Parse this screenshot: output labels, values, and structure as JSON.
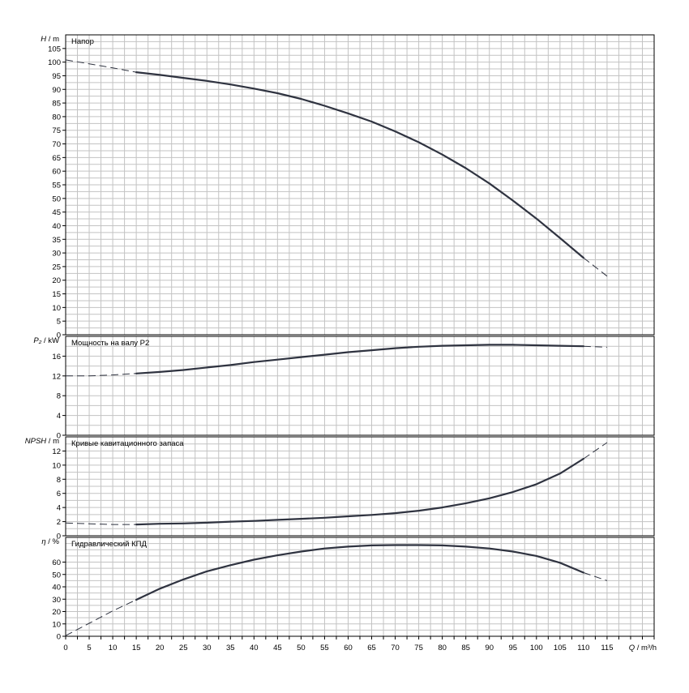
{
  "chart_data": {
    "type": "line",
    "x": {
      "label_symbol": "Q",
      "label_unit": "m³/h",
      "range": [
        0,
        125
      ],
      "ticks": [
        0,
        5,
        10,
        15,
        20,
        25,
        30,
        35,
        40,
        45,
        50,
        55,
        60,
        65,
        70,
        75,
        80,
        85,
        90,
        95,
        100,
        105,
        110,
        115
      ],
      "tick_labels": [
        "0",
        "5",
        "10",
        "15",
        "20",
        "25",
        "30",
        "35",
        "40",
        "45",
        "50",
        "55",
        "60",
        "65",
        "70",
        "75",
        "80",
        "85",
        "90",
        "95",
        "100",
        "105",
        "110",
        "115"
      ]
    },
    "grid": true,
    "panels": [
      {
        "id": "head",
        "title": "Напор",
        "ylabel_symbol": "H",
        "ylabel_unit": "m",
        "ylim": [
          0,
          110
        ],
        "yticks": [
          0,
          5,
          10,
          15,
          20,
          25,
          30,
          35,
          40,
          45,
          50,
          55,
          60,
          65,
          70,
          75,
          80,
          85,
          90,
          95,
          100,
          105
        ],
        "ytick_labels": [
          "0",
          "5",
          "10",
          "15",
          "20",
          "25",
          "30",
          "35",
          "40",
          "45",
          "50",
          "55",
          "60",
          "65",
          "70",
          "75",
          "80",
          "85",
          "90",
          "95",
          "100",
          "105"
        ],
        "series": [
          {
            "solid": [
              [
                15,
                96.3
              ],
              [
                20,
                95.3
              ],
              [
                25,
                94.2
              ],
              [
                30,
                93.1
              ],
              [
                35,
                91.8
              ],
              [
                40,
                90.3
              ],
              [
                45,
                88.6
              ],
              [
                50,
                86.5
              ],
              [
                55,
                84.0
              ],
              [
                60,
                81.2
              ],
              [
                65,
                78.2
              ],
              [
                70,
                74.6
              ],
              [
                75,
                70.6
              ],
              [
                80,
                66.1
              ],
              [
                85,
                61.1
              ],
              [
                90,
                55.5
              ],
              [
                95,
                49.2
              ],
              [
                100,
                42.6
              ],
              [
                105,
                35.5
              ],
              [
                110,
                28.2
              ]
            ],
            "dashed_start": [
              [
                0,
                100.8
              ],
              [
                5,
                99.4
              ],
              [
                10,
                97.9
              ],
              [
                15,
                96.3
              ]
            ],
            "dashed_end": [
              [
                110,
                28.2
              ],
              [
                115,
                21.5
              ]
            ]
          }
        ]
      },
      {
        "id": "power",
        "title": "Мощность на валу P2",
        "ylabel_symbol": "P₂",
        "ylabel_unit": "kW",
        "ylim": [
          0,
          20
        ],
        "yticks": [
          0,
          4,
          8,
          12,
          16
        ],
        "ytick_labels": [
          "0",
          "4",
          "8",
          "12",
          "16"
        ],
        "series": [
          {
            "solid": [
              [
                15,
                12.5
              ],
              [
                20,
                12.8
              ],
              [
                25,
                13.2
              ],
              [
                30,
                13.7
              ],
              [
                35,
                14.2
              ],
              [
                40,
                14.8
              ],
              [
                45,
                15.3
              ],
              [
                50,
                15.8
              ],
              [
                55,
                16.3
              ],
              [
                60,
                16.8
              ],
              [
                65,
                17.2
              ],
              [
                70,
                17.6
              ],
              [
                75,
                17.9
              ],
              [
                80,
                18.1
              ],
              [
                85,
                18.2
              ],
              [
                90,
                18.3
              ],
              [
                95,
                18.3
              ],
              [
                100,
                18.2
              ],
              [
                105,
                18.1
              ],
              [
                110,
                18.0
              ]
            ],
            "dashed_start": [
              [
                0,
                12.0
              ],
              [
                5,
                12.0
              ],
              [
                10,
                12.2
              ],
              [
                15,
                12.5
              ]
            ],
            "dashed_end": [
              [
                110,
                18.0
              ],
              [
                115,
                17.8
              ]
            ]
          }
        ]
      },
      {
        "id": "npsh",
        "title": "Кривые кавитационного запаса",
        "ylabel_symbol": "NPSH",
        "ylabel_unit": "m",
        "ylim": [
          0,
          14
        ],
        "yticks": [
          0,
          2,
          4,
          6,
          8,
          10,
          12
        ],
        "ytick_labels": [
          "0",
          "2",
          "4",
          "6",
          "8",
          "10",
          "12"
        ],
        "series": [
          {
            "solid": [
              [
                15,
                1.6
              ],
              [
                20,
                1.7
              ],
              [
                25,
                1.75
              ],
              [
                30,
                1.85
              ],
              [
                35,
                2.0
              ],
              [
                40,
                2.1
              ],
              [
                45,
                2.25
              ],
              [
                50,
                2.4
              ],
              [
                55,
                2.55
              ],
              [
                60,
                2.75
              ],
              [
                65,
                2.95
              ],
              [
                70,
                3.2
              ],
              [
                75,
                3.55
              ],
              [
                80,
                4.0
              ],
              [
                85,
                4.6
              ],
              [
                90,
                5.3
              ],
              [
                95,
                6.2
              ],
              [
                100,
                7.3
              ],
              [
                105,
                8.8
              ],
              [
                110,
                10.9
              ]
            ],
            "dashed_start": [
              [
                0,
                1.8
              ],
              [
                5,
                1.7
              ],
              [
                10,
                1.6
              ],
              [
                15,
                1.6
              ]
            ],
            "dashed_end": [
              [
                110,
                10.9
              ],
              [
                115,
                13.2
              ]
            ]
          }
        ]
      },
      {
        "id": "efficiency",
        "title": "Гидравлический КПД",
        "ylabel_symbol": "η",
        "ylabel_unit": "%",
        "ylim": [
          0,
          80
        ],
        "yticks": [
          0,
          10,
          20,
          30,
          40,
          50,
          60
        ],
        "ytick_labels": [
          "0",
          "10",
          "20",
          "30",
          "40",
          "50",
          "60"
        ],
        "series": [
          {
            "solid": [
              [
                15,
                29.5
              ],
              [
                20,
                38.5
              ],
              [
                25,
                46.0
              ],
              [
                30,
                52.5
              ],
              [
                35,
                57.5
              ],
              [
                40,
                62.0
              ],
              [
                45,
                65.5
              ],
              [
                50,
                68.5
              ],
              [
                55,
                71.0
              ],
              [
                60,
                72.5
              ],
              [
                65,
                73.5
              ],
              [
                70,
                73.8
              ],
              [
                75,
                73.8
              ],
              [
                80,
                73.5
              ],
              [
                85,
                72.5
              ],
              [
                90,
                71.0
              ],
              [
                95,
                68.5
              ],
              [
                100,
                65.0
              ],
              [
                105,
                59.5
              ],
              [
                110,
                51.5
              ]
            ],
            "dashed_start": [
              [
                0,
                0.5
              ],
              [
                5,
                10.5
              ],
              [
                10,
                20.5
              ],
              [
                15,
                29.5
              ]
            ],
            "dashed_end": [
              [
                110,
                51.5
              ],
              [
                115,
                45.0
              ]
            ]
          }
        ]
      }
    ],
    "colors": {
      "curve": "#2f3340",
      "grid": "#c3c3c3",
      "frame": "#000000",
      "background": "#ffffff"
    }
  }
}
